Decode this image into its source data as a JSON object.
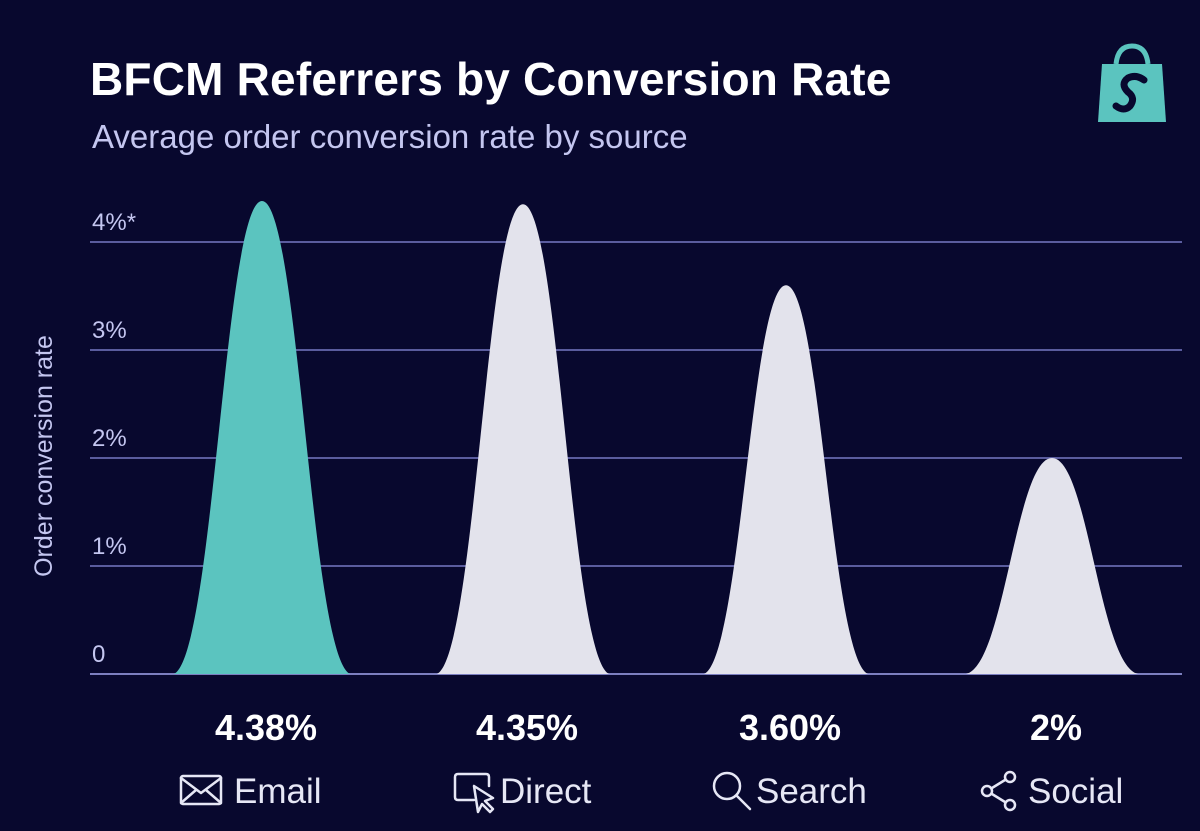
{
  "chart_data": {
    "type": "area",
    "title": "BFCM Referrers by Conversion Rate",
    "subtitle": "Average order conversion rate by source",
    "ylabel": "Order conversion rate",
    "xlabel": "",
    "ylim": [
      0,
      4.5
    ],
    "yticks": [
      {
        "value": 0,
        "label": "0"
      },
      {
        "value": 1,
        "label": "1%"
      },
      {
        "value": 2,
        "label": "2%"
      },
      {
        "value": 3,
        "label": "3%"
      },
      {
        "value": 4,
        "label": "4%*"
      }
    ],
    "grid": true,
    "categories": [
      "Email",
      "Direct",
      "Search",
      "Social"
    ],
    "values": [
      4.38,
      4.35,
      3.6,
      2.0
    ],
    "value_labels": [
      "4.38%",
      "4.35%",
      "3.60%",
      "2%"
    ],
    "icons": [
      "envelope-icon",
      "cursor-click-icon",
      "search-icon",
      "share-icon"
    ],
    "colors": {
      "highlight": "#5bc4bf",
      "default": "#e3e3ec",
      "background": "#08082e",
      "grid": "#5a5c9e",
      "text_secondary": "#c4c6f0"
    }
  },
  "brand": {
    "logo_icon": "shopify-bag-icon",
    "logo_color": "#5bc4bf"
  }
}
